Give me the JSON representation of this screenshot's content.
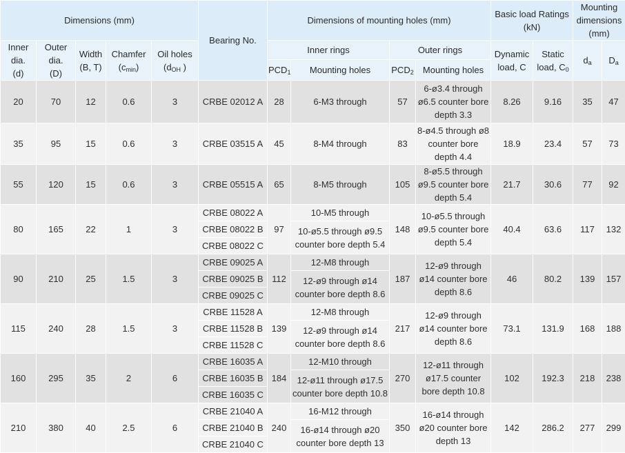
{
  "header": {
    "dimensions": "Dimensions (mm)",
    "bearing_no": "Bearing No.",
    "mounting_holes": "Dimensions of mounting holes (mm)",
    "load_ratings": "Basic load Ratings (kN)",
    "mounting_dims": "Mounting dimensions (mm)",
    "inner_rings": "Inner rings",
    "outer_rings": "Outer rings",
    "inner_dia": "Inner dia.",
    "inner_dia_sym": "(d)",
    "outer_dia": "Outer dia.",
    "outer_dia_sym": "(D)",
    "width": "Width",
    "width_sym": "(B, T)",
    "chamfer": "Chamfer",
    "chamfer_sym": "(c",
    "chamfer_sub": "min",
    "chamfer_close": ")",
    "oil_holes": "Oil holes",
    "oil_sym": "(d",
    "oil_sub": "OH",
    "oil_close": " )",
    "pcd": "PCD",
    "pcd1_sub": "1",
    "pcd2_sub": "2",
    "mounting_holes_col": "Mounting holes",
    "dynamic": "Dynamic",
    "dynamic_2": "load, C",
    "static": "Static",
    "static_2": "load, C",
    "static_sub": "0",
    "d_sym": "d",
    "da_sub": "a",
    "D_sym": "D",
    "Da_sub": "a"
  },
  "rows": [
    {
      "d": "20",
      "D": "70",
      "B": "12",
      "c": "0.6",
      "oil": "3",
      "bearings": [
        "CRBE 02012 A"
      ],
      "pcd1": "28",
      "inner_holes": [
        "6-M3 through"
      ],
      "pcd2": "57",
      "outer_holes": "6-ø3.4 through ø6.5 counter bore depth 3.3",
      "C": "8.26",
      "C0": "9.16",
      "da": "35",
      "Da": "47"
    },
    {
      "d": "35",
      "D": "95",
      "B": "15",
      "c": "0.6",
      "oil": "3",
      "bearings": [
        "CRBE 03515 A"
      ],
      "pcd1": "45",
      "inner_holes": [
        "8-M4 through"
      ],
      "pcd2": "83",
      "outer_holes": "8-ø4.5 through ø8 counter bore depth 4.4",
      "C": "18.9",
      "C0": "23.4",
      "da": "57",
      "Da": "73"
    },
    {
      "d": "55",
      "D": "120",
      "B": "15",
      "c": "0.6",
      "oil": "3",
      "bearings": [
        "CRBE 05515 A"
      ],
      "pcd1": "65",
      "inner_holes": [
        "8-M5 through"
      ],
      "pcd2": "105",
      "outer_holes": "8-ø5.5 through ø9.5 counter bore depth 5.4",
      "C": "21.7",
      "C0": "30.6",
      "da": "77",
      "Da": "92"
    },
    {
      "d": "80",
      "D": "165",
      "B": "22",
      "c": "1",
      "oil": "3",
      "bearings": [
        "CRBE 08022 A",
        "CRBE 08022 B",
        "CRBE 08022 C"
      ],
      "pcd1": "97",
      "inner_holes": [
        "10-M5 through",
        "10-ø5.5 through ø9.5 counter bore depth 5.4"
      ],
      "pcd2": "148",
      "outer_holes": "10-ø5.5 through ø9.5 counter bore depth 5.4",
      "C": "40.4",
      "C0": "63.6",
      "da": "117",
      "Da": "132"
    },
    {
      "d": "90",
      "D": "210",
      "B": "25",
      "c": "1.5",
      "oil": "3",
      "bearings": [
        "CRBE 09025 A",
        "CRBE 09025 B",
        "CRBE 09025 C"
      ],
      "pcd1": "112",
      "inner_holes": [
        "12-M8 through",
        "12-ø9 through ø14 counter bore depth 8.6"
      ],
      "pcd2": "187",
      "outer_holes": "12-ø9 through ø14 counter bore depth 8.6",
      "C": "46",
      "C0": "80.2",
      "da": "139",
      "Da": "157"
    },
    {
      "d": "115",
      "D": "240",
      "B": "28",
      "c": "1.5",
      "oil": "3",
      "bearings": [
        "CRBE 11528 A",
        "CRBE 11528 B",
        "CRBE 11528 C"
      ],
      "pcd1": "139",
      "inner_holes": [
        "12-M8 through",
        "12-ø9 through ø14 counter bore depth 8.6"
      ],
      "pcd2": "217",
      "outer_holes": "12-ø9 through ø14 counter bore depth 8.6",
      "C": "73.1",
      "C0": "131.9",
      "da": "168",
      "Da": "188"
    },
    {
      "d": "160",
      "D": "295",
      "B": "35",
      "c": "2",
      "oil": "6",
      "bearings": [
        "CRBE 16035 A",
        "CRBE 16035 B",
        "CRBE 16035 C"
      ],
      "pcd1": "184",
      "inner_holes": [
        "12-M10 through",
        "12-ø11 through ø17.5 counter bore depth 10.8"
      ],
      "pcd2": "270",
      "outer_holes": "12-ø11 through ø17.5 counter bore depth 10.8",
      "C": "102",
      "C0": "192.3",
      "da": "218",
      "Da": "238"
    },
    {
      "d": "210",
      "D": "380",
      "B": "40",
      "c": "2.5",
      "oil": "6",
      "bearings": [
        "CRBE 21040 A",
        "CRBE 21040 B",
        "CRBE 21040 C"
      ],
      "pcd1": "240",
      "inner_holes": [
        "16-M12 through",
        "16-ø14 through ø20 counter bore depth 13"
      ],
      "pcd2": "350",
      "outer_holes": "16-ø14 through ø20 counter bore depth 13",
      "C": "142",
      "C0": "286.2",
      "da": "277",
      "Da": "299"
    }
  ]
}
